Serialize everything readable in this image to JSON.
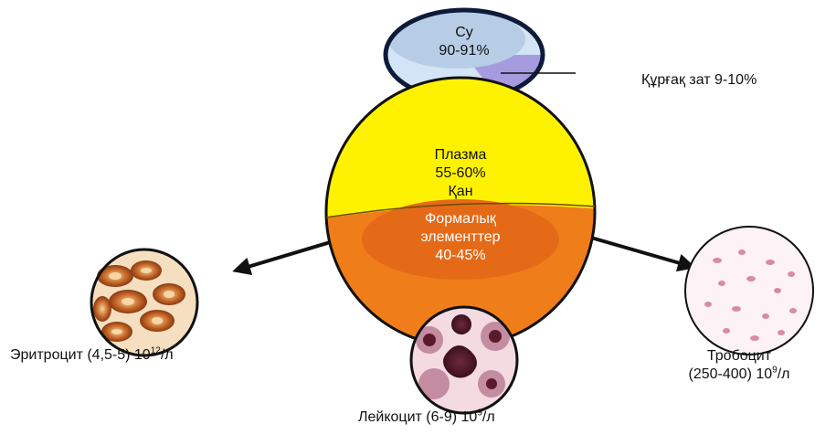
{
  "plasma": {
    "line1": "Плазма",
    "line2": "55-60%",
    "color": "#fff200"
  },
  "blood": {
    "label": "Қан"
  },
  "formed": {
    "line1": "Формалық",
    "line2": "элементтер",
    "line3": "40-45%",
    "color": "#ef7d1a"
  },
  "water": {
    "line1": "Су",
    "line2": "90-91%",
    "fill_color": "#b7cde6"
  },
  "dry_matter": {
    "label": "Құрғақ зат 9-10%",
    "fill_color": "#a79be0"
  },
  "erythrocyte": {
    "prefix": "Эритроцит (4,5-5) 10",
    "exp": "12",
    "suffix": "/л"
  },
  "leukocyte": {
    "prefix": "Лейкоцит (6-9) 10",
    "exp": "9",
    "suffix": "/л"
  },
  "thrombocyte": {
    "line1": "Тробоцит",
    "prefix": "(250-400) 10",
    "exp": "9",
    "suffix": "/л"
  }
}
